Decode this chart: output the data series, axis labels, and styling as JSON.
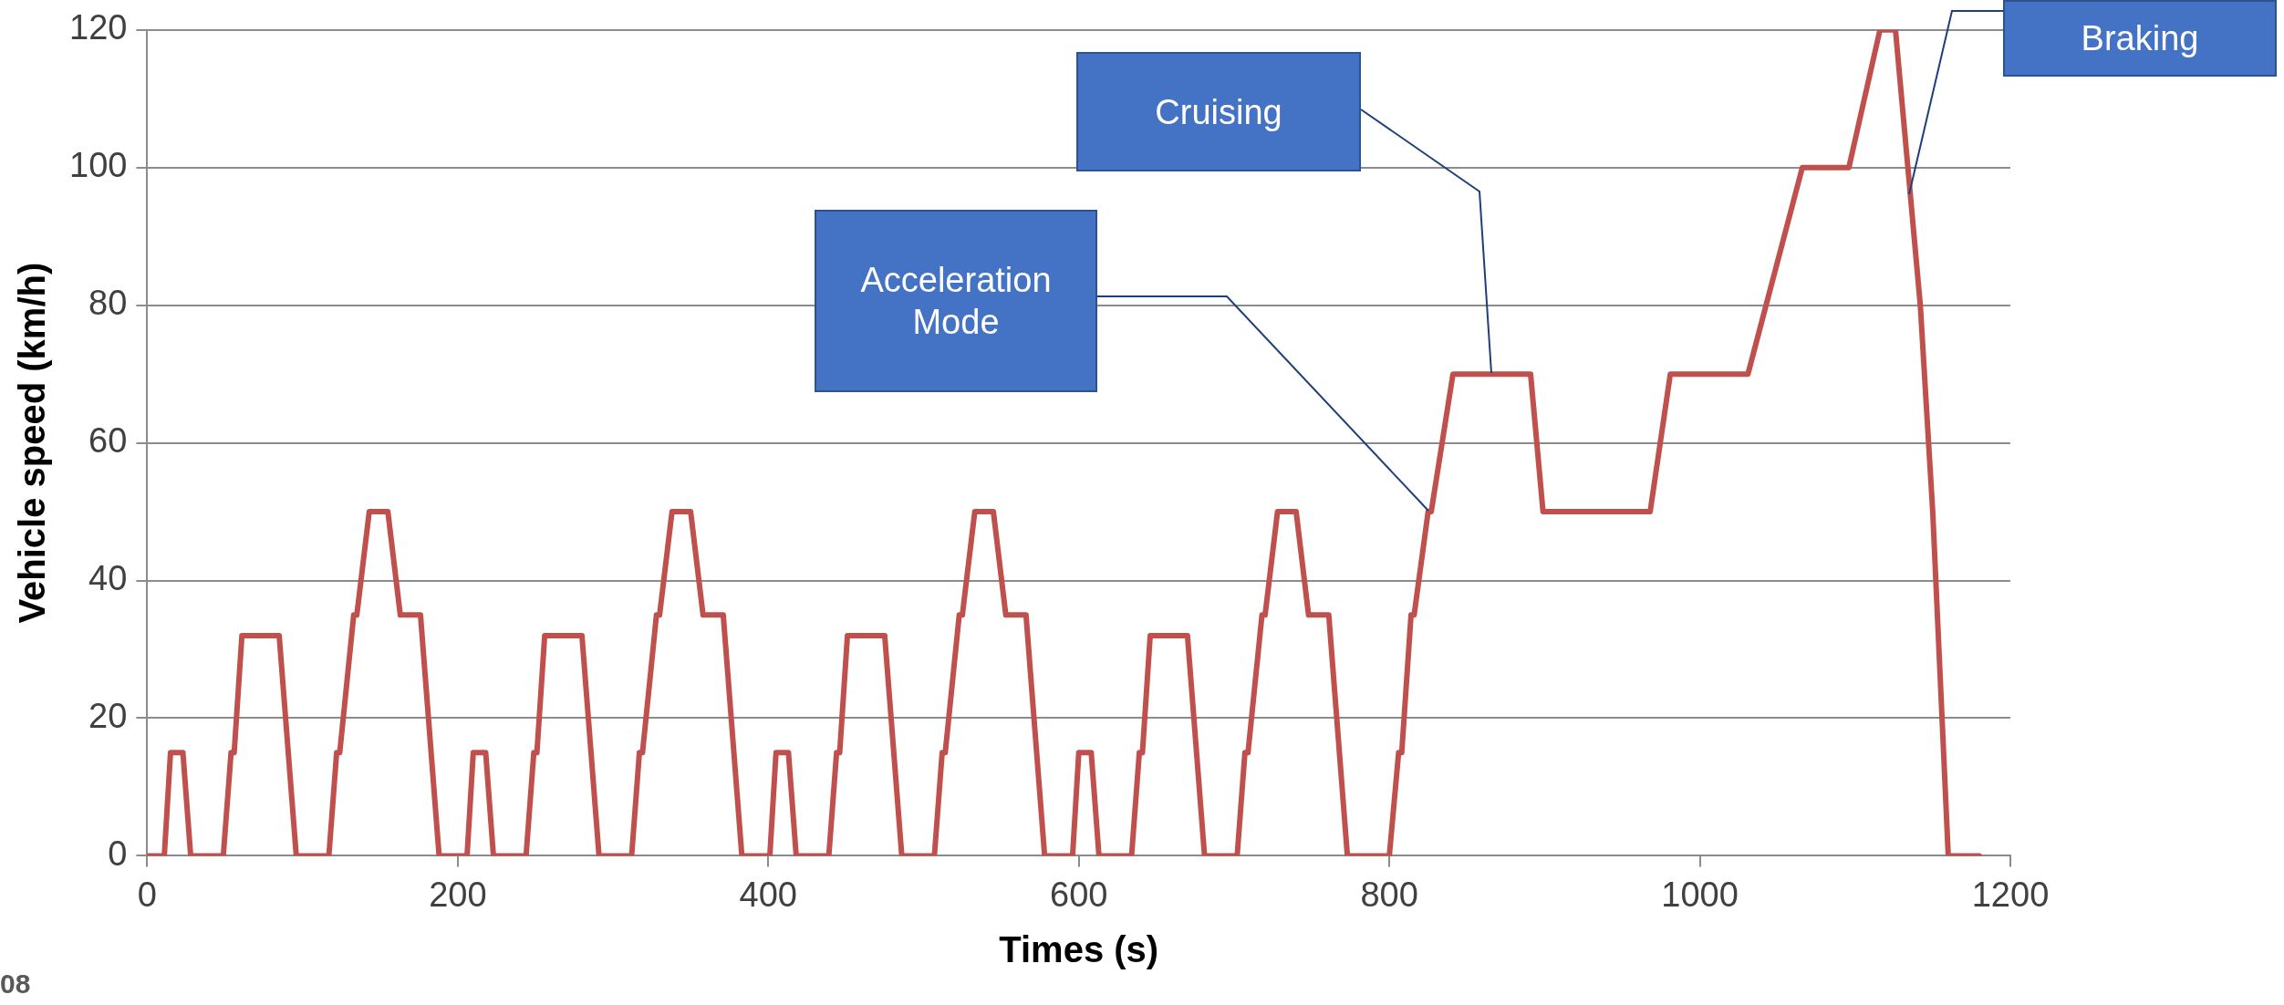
{
  "chart_data": {
    "type": "line",
    "xlabel": "Times (s)",
    "ylabel": "Vehicle speed (km/h)",
    "xlim": [
      0,
      1200
    ],
    "xticks": [
      0,
      200,
      400,
      600,
      800,
      1000,
      1200
    ],
    "ylim": [
      0,
      120
    ],
    "yticks": [
      0,
      20,
      40,
      60,
      80,
      100,
      120
    ],
    "grid": "y",
    "legend": false,
    "marker": "none",
    "line_style": "solid",
    "series": [
      {
        "color": "#c0504d",
        "x": [
          0,
          11,
          15,
          23,
          28,
          49,
          54,
          56,
          61,
          85,
          96,
          117,
          122,
          124,
          133,
          135,
          143,
          155,
          163,
          176,
          188,
          195,
          206,
          210,
          218,
          223,
          244,
          249,
          251,
          256,
          280,
          291,
          312,
          317,
          319,
          328,
          330,
          338,
          350,
          358,
          371,
          383,
          390,
          401,
          405,
          413,
          418,
          439,
          444,
          446,
          451,
          475,
          486,
          507,
          512,
          514,
          523,
          525,
          533,
          545,
          553,
          566,
          578,
          585,
          596,
          600,
          608,
          613,
          634,
          639,
          641,
          646,
          670,
          681,
          702,
          707,
          709,
          718,
          720,
          728,
          740,
          748,
          761,
          773,
          780,
          800,
          806,
          808,
          814,
          816,
          825,
          827,
          841,
          891,
          899,
          968,
          981,
          1031,
          1066,
          1096,
          1116,
          1126,
          1142,
          1150,
          1160,
          1180
        ],
        "values": [
          0,
          0,
          15,
          15,
          0,
          0,
          15,
          15,
          32,
          32,
          0,
          0,
          15,
          15,
          35,
          35,
          50,
          50,
          35,
          35,
          0,
          0,
          0,
          15,
          15,
          0,
          0,
          15,
          15,
          32,
          32,
          0,
          0,
          15,
          15,
          35,
          35,
          50,
          50,
          35,
          35,
          0,
          0,
          0,
          15,
          15,
          0,
          0,
          15,
          15,
          32,
          32,
          0,
          0,
          15,
          15,
          35,
          35,
          50,
          50,
          35,
          35,
          0,
          0,
          0,
          15,
          15,
          0,
          0,
          15,
          15,
          32,
          32,
          0,
          0,
          15,
          15,
          35,
          35,
          50,
          50,
          35,
          35,
          0,
          0,
          0,
          15,
          15,
          35,
          35,
          50,
          50,
          70,
          70,
          50,
          50,
          70,
          70,
          100,
          100,
          120,
          120,
          80,
          50,
          0,
          0
        ]
      }
    ],
    "annotations": [
      "Acceleration Mode",
      "Cruising",
      "Braking",
      "08"
    ]
  }
}
